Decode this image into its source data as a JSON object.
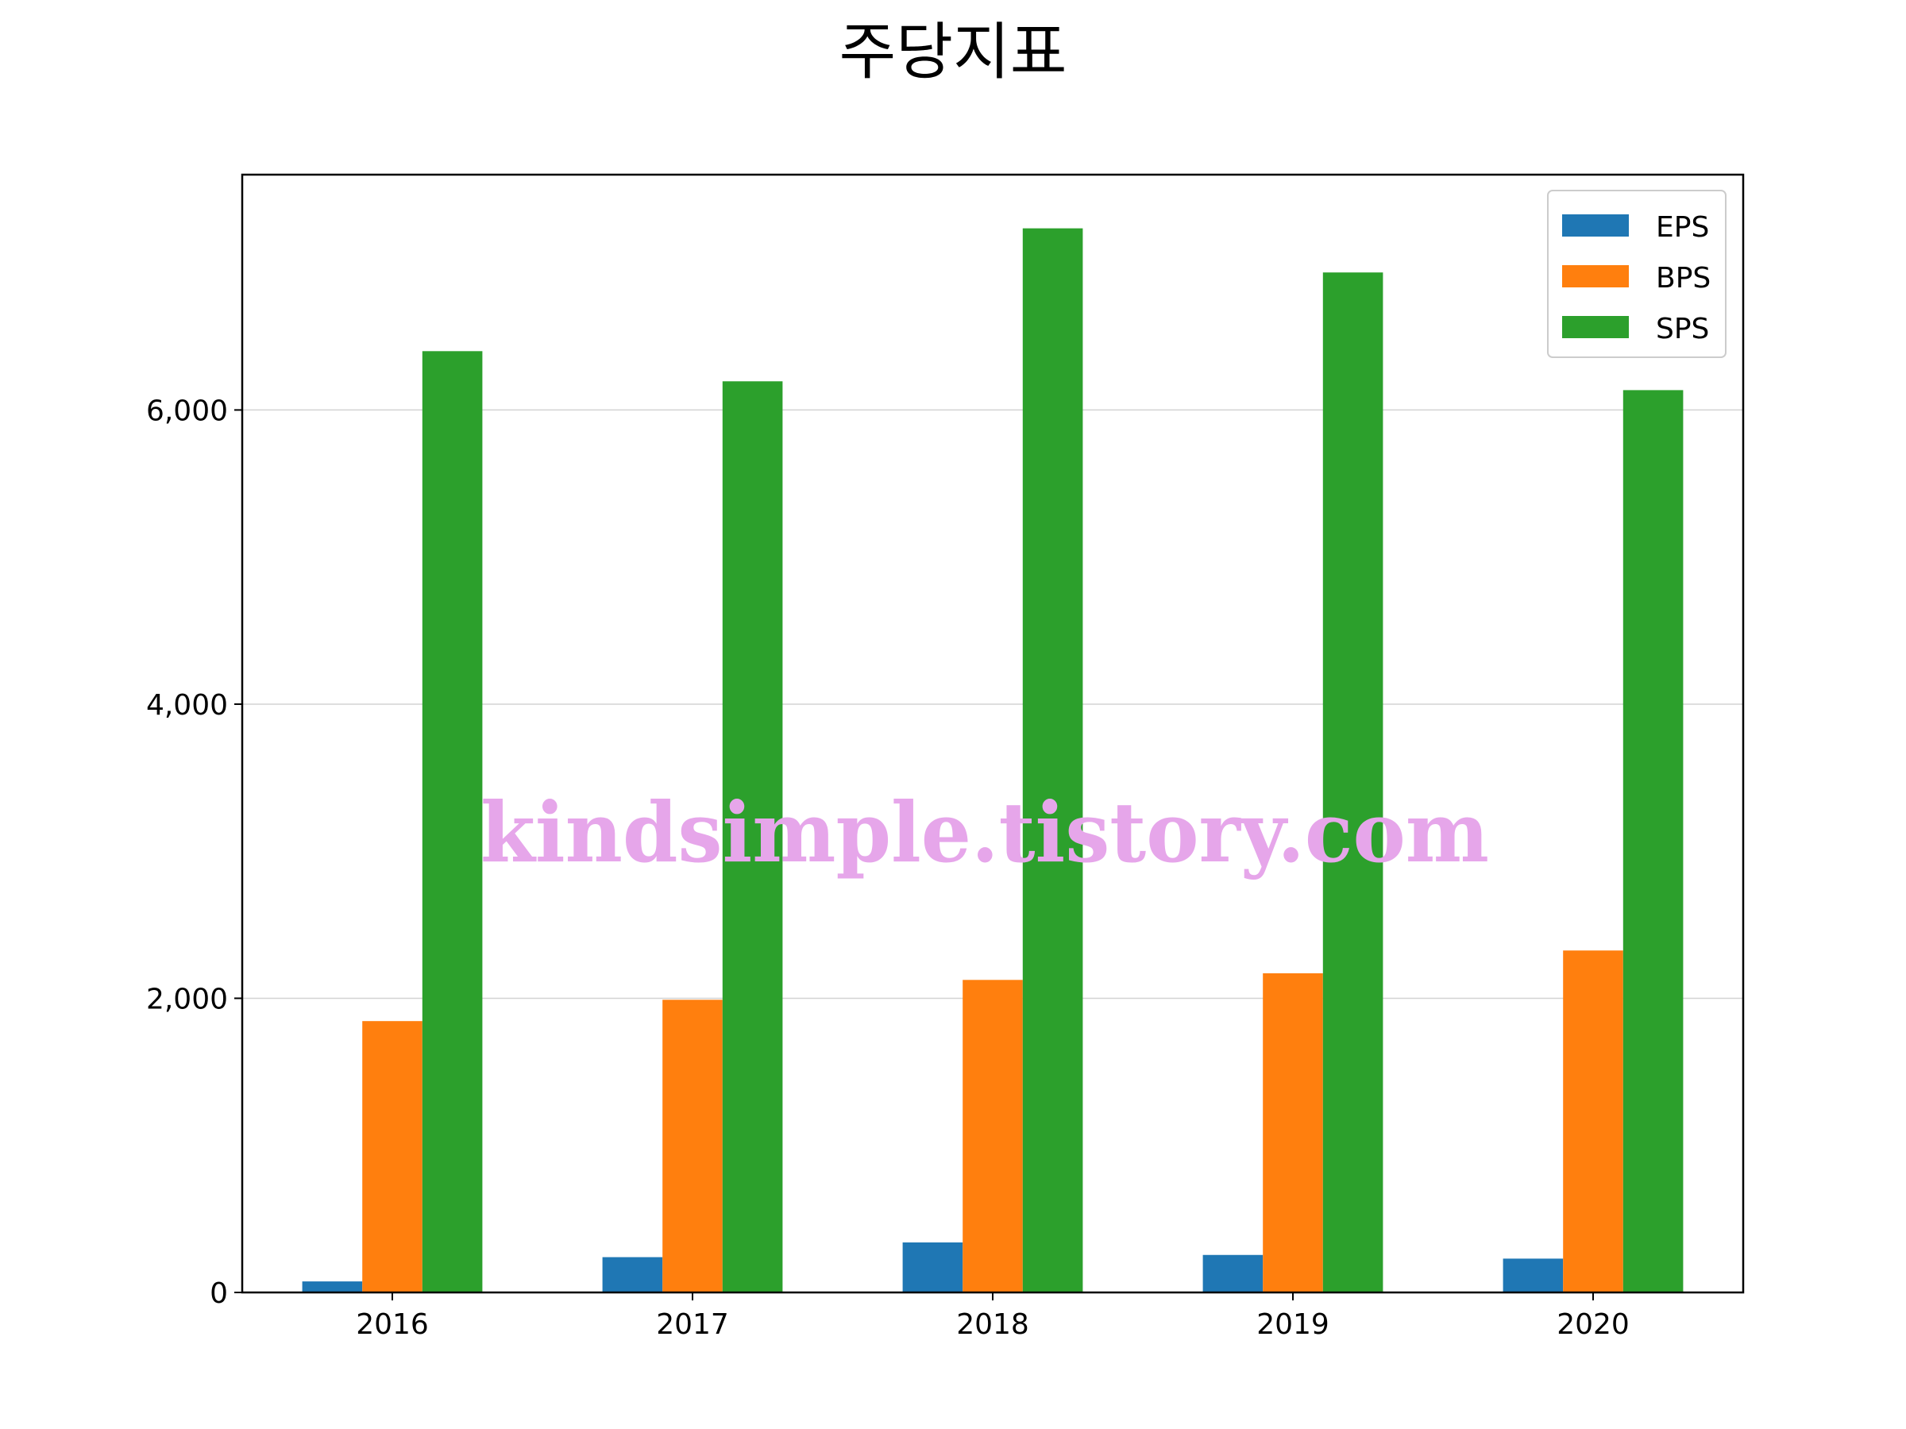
{
  "chart_data": {
    "type": "bar",
    "title": "주당지표",
    "xlabel": "",
    "ylabel": "",
    "categories": [
      "2016",
      "2017",
      "2018",
      "2019",
      "2020"
    ],
    "series": [
      {
        "name": "EPS",
        "color": "#1f77b4",
        "values": [
          75,
          240,
          340,
          255,
          230
        ]
      },
      {
        "name": "BPS",
        "color": "#ff7f0e",
        "values": [
          1845,
          1990,
          2125,
          2170,
          2325
        ]
      },
      {
        "name": "SPS",
        "color": "#2ca02c",
        "values": [
          6400,
          6195,
          7235,
          6935,
          6135
        ]
      }
    ],
    "ylim": [
      0,
      7600
    ],
    "yticks": [
      0,
      2000,
      4000,
      6000
    ],
    "ytick_labels": [
      "0",
      "2,000",
      "4,000",
      "6,000"
    ],
    "grid": "horizontal",
    "legend_position": "top-right"
  },
  "watermark": "kindsimple.tistory.com"
}
